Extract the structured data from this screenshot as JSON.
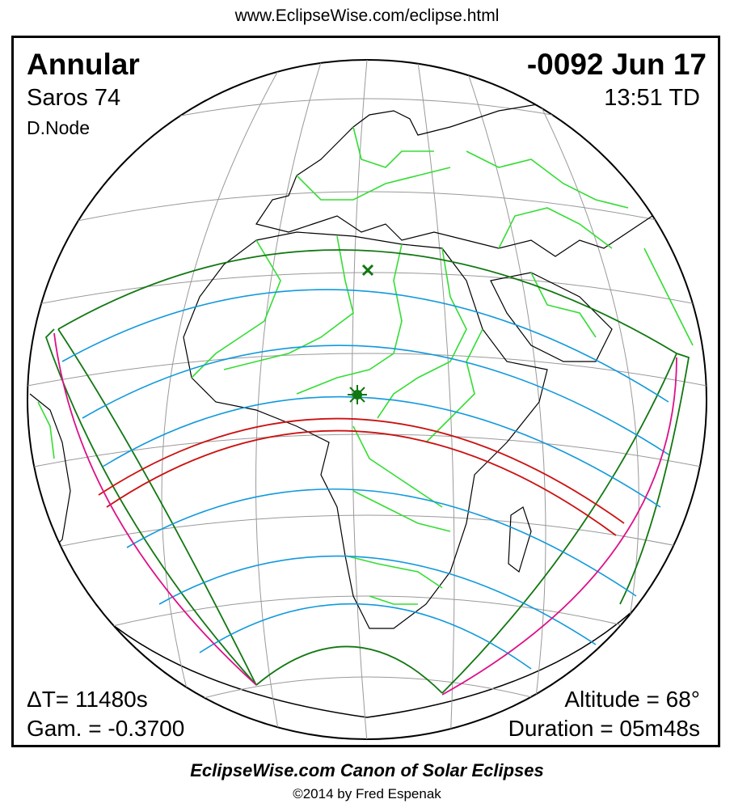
{
  "header": {
    "url": "www.EclipseWise.com/eclipse.html"
  },
  "eclipse": {
    "type": "Annular",
    "saros": "Saros  74",
    "node": "D.Node",
    "date": "-0092 Jun 17",
    "time": "13:51 TD",
    "delta_t": "ΔT=  11480s",
    "gamma": "Gam. = -0.3700",
    "altitude": "Altitude = 68°",
    "duration": "Duration = 05m48s"
  },
  "footer": {
    "caption": "EclipseWise.com Canon of Solar Eclipses",
    "copyright": "©2014 by Fred Espenak"
  },
  "colors": {
    "land_outline": "#000000",
    "borders": "#33dd33",
    "grid": "#999999",
    "penumbra_limits": "#117711",
    "penumbra_contours": "#1199dd",
    "central_path": "#cc1111",
    "rise_set_curves": "#dd1188",
    "night_shade": "#c8c8c8"
  },
  "icons": {
    "greatest_eclipse": "star-marker",
    "greatest_duration": "x-marker"
  }
}
